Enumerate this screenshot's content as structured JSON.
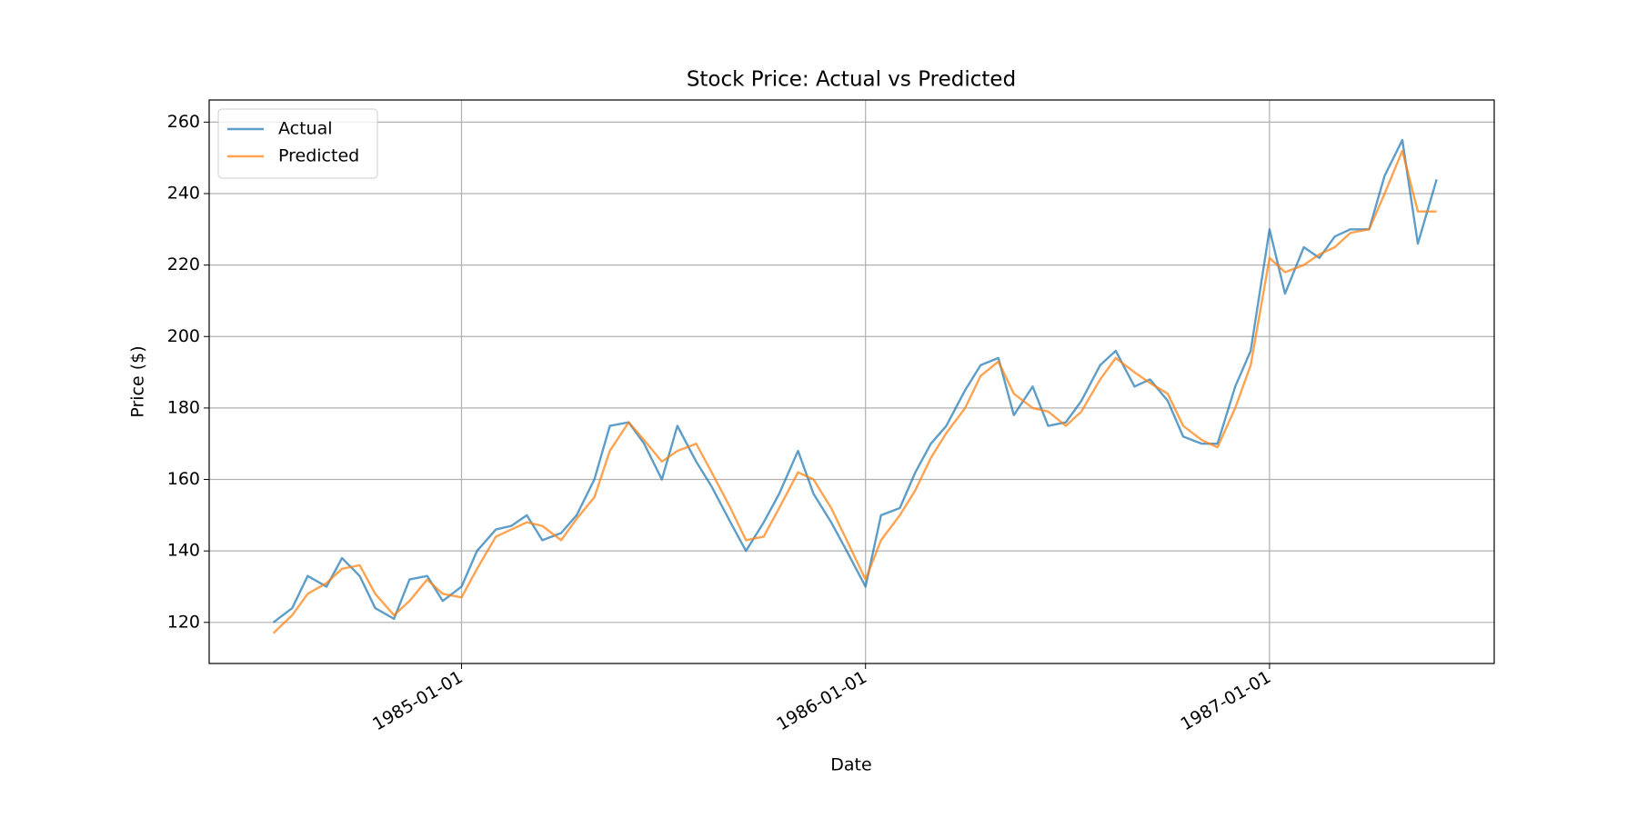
{
  "chart_data": {
    "type": "line",
    "title": "Stock Price: Actual vs Predicted",
    "xlabel": "Date",
    "ylabel": "Price ($)",
    "x": [
      "1984-07-15",
      "1984-08-01",
      "1984-08-15",
      "1984-09-01",
      "1984-09-15",
      "1984-10-01",
      "1984-10-15",
      "1984-11-01",
      "1984-11-15",
      "1984-12-01",
      "1984-12-15",
      "1985-01-01",
      "1985-01-15",
      "1985-02-01",
      "1985-02-15",
      "1985-03-01",
      "1985-03-15",
      "1985-04-01",
      "1985-04-15",
      "1985-05-01",
      "1985-05-15",
      "1985-06-01",
      "1985-06-15",
      "1985-07-01",
      "1985-07-15",
      "1985-08-01",
      "1985-08-15",
      "1985-09-01",
      "1985-09-15",
      "1985-10-01",
      "1985-10-15",
      "1985-11-01",
      "1985-11-15",
      "1985-12-01",
      "1985-12-15",
      "1986-01-01",
      "1986-01-15",
      "1986-02-01",
      "1986-02-15",
      "1986-03-01",
      "1986-03-15",
      "1986-04-01",
      "1986-04-15",
      "1986-05-01",
      "1986-05-15",
      "1986-06-01",
      "1986-06-15",
      "1986-07-01",
      "1986-07-15",
      "1986-08-01",
      "1986-08-15",
      "1986-09-01",
      "1986-09-15",
      "1986-10-01",
      "1986-10-15",
      "1986-11-01",
      "1986-11-15",
      "1986-12-01",
      "1986-12-15",
      "1987-01-01",
      "1987-01-15",
      "1987-02-01",
      "1987-02-15",
      "1987-03-01",
      "1987-03-15",
      "1987-04-01",
      "1987-04-15",
      "1987-05-01",
      "1987-05-15",
      "1987-06-01"
    ],
    "series": [
      {
        "name": "Actual",
        "color": "#1f77b4",
        "values": [
          120,
          124,
          133,
          130,
          138,
          133,
          124,
          121,
          132,
          133,
          126,
          130,
          140,
          146,
          147,
          150,
          143,
          145,
          150,
          160,
          175,
          176,
          170,
          160,
          175,
          165,
          158,
          148,
          140,
          148,
          156,
          168,
          156,
          148,
          140,
          130,
          150,
          152,
          162,
          170,
          175,
          185,
          192,
          194,
          178,
          186,
          175,
          176,
          182,
          192,
          196,
          186,
          188,
          182,
          172,
          170,
          170,
          186,
          196,
          230,
          212,
          225,
          222,
          228,
          230,
          230,
          245,
          255,
          226,
          244
        ]
      },
      {
        "name": "Predicted",
        "color": "#ff7f0e",
        "values": [
          117,
          122,
          128,
          131,
          135,
          136,
          128,
          122,
          126,
          132,
          128,
          127,
          135,
          144,
          146,
          148,
          147,
          143,
          149,
          155,
          168,
          176,
          171,
          165,
          168,
          170,
          162,
          152,
          143,
          144,
          152,
          162,
          160,
          152,
          143,
          132,
          143,
          150,
          157,
          166,
          173,
          180,
          189,
          193,
          184,
          180,
          179,
          175,
          179,
          188,
          194,
          190,
          187,
          184,
          175,
          171,
          169,
          180,
          192,
          222,
          218,
          220,
          223,
          225,
          229,
          230,
          240,
          252,
          235,
          235
        ]
      }
    ],
    "xlim": [
      "1984-05-18",
      "1987-07-23"
    ],
    "xticks": [
      "1985-01-01",
      "1986-01-01",
      "1987-01-01"
    ],
    "ylim": [
      108.5,
      266.2
    ],
    "yticks": [
      120,
      140,
      160,
      180,
      200,
      220,
      240,
      260
    ],
    "grid": true,
    "legend": "upper left"
  }
}
